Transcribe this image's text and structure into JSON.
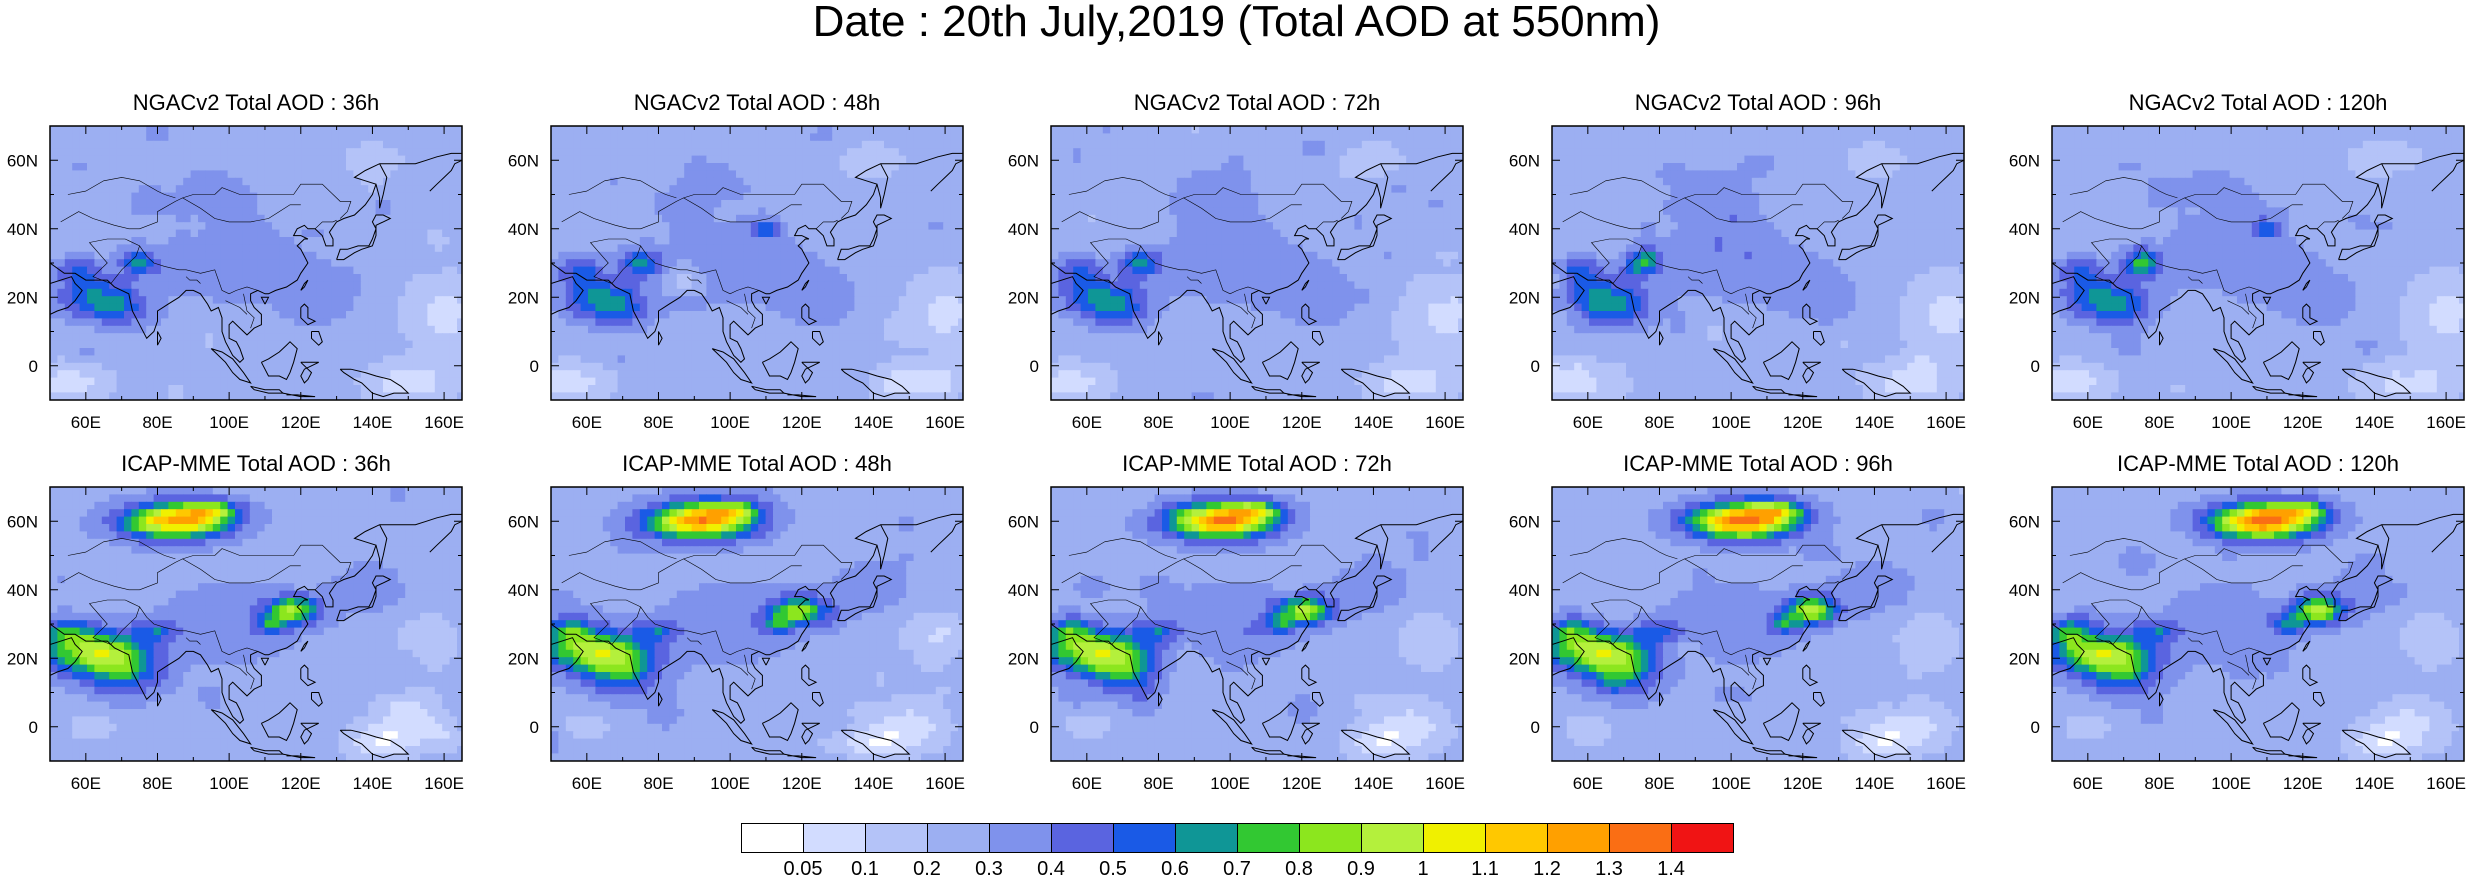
{
  "title": "Date : 20th July,2019 (Total AOD at 550nm)",
  "axes": {
    "lat_ticks": [
      "60N",
      "40N",
      "20N",
      "0"
    ],
    "lon_ticks": [
      "60E",
      "80E",
      "100E",
      "120E",
      "140E",
      "160E"
    ]
  },
  "panels": [
    {
      "title": "NGACv2 Total AOD : 36h",
      "model": "NGACv2",
      "lead": "36h"
    },
    {
      "title": "NGACv2 Total AOD : 48h",
      "model": "NGACv2",
      "lead": "48h"
    },
    {
      "title": "NGACv2 Total AOD : 72h",
      "model": "NGACv2",
      "lead": "72h"
    },
    {
      "title": "NGACv2 Total AOD : 96h",
      "model": "NGACv2",
      "lead": "96h"
    },
    {
      "title": "NGACv2 Total AOD : 120h",
      "model": "NGACv2",
      "lead": "120h"
    },
    {
      "title": "ICAP-MME Total AOD : 36h",
      "model": "ICAP-MME",
      "lead": "36h"
    },
    {
      "title": "ICAP-MME Total AOD : 48h",
      "model": "ICAP-MME",
      "lead": "48h"
    },
    {
      "title": "ICAP-MME Total AOD : 72h",
      "model": "ICAP-MME",
      "lead": "72h"
    },
    {
      "title": "ICAP-MME Total AOD : 96h",
      "model": "ICAP-MME",
      "lead": "96h"
    },
    {
      "title": "ICAP-MME Total AOD : 120h",
      "model": "ICAP-MME",
      "lead": "120h"
    }
  ],
  "colorbar": {
    "labels": [
      "0.05",
      "0.1",
      "0.2",
      "0.3",
      "0.4",
      "0.5",
      "0.6",
      "0.7",
      "0.8",
      "0.9",
      "1",
      "1.1",
      "1.2",
      "1.3",
      "1.4"
    ],
    "colors": [
      "#ffffff",
      "#d2dcff",
      "#b4c3f8",
      "#9caff2",
      "#7f92ec",
      "#5a64e0",
      "#1a5ae6",
      "#0f9696",
      "#32c832",
      "#8ce61e",
      "#b4f03c",
      "#f0f000",
      "#ffc800",
      "#ffa000",
      "#fa6e14",
      "#f01414"
    ]
  }
}
